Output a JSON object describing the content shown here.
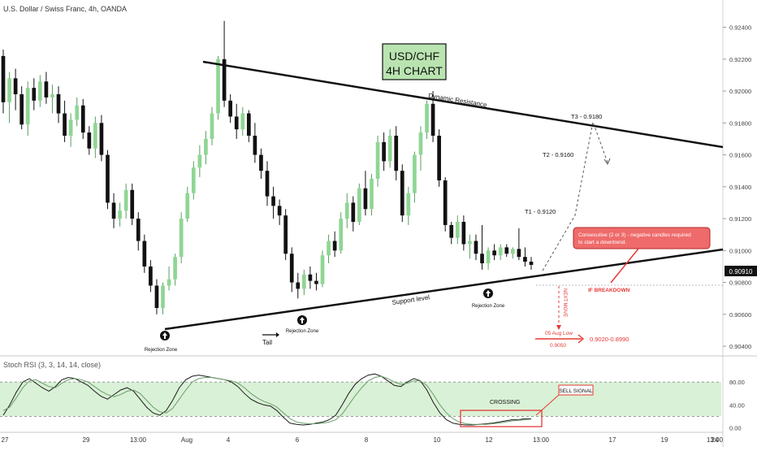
{
  "header": {
    "symbol_title": "U.S. Dollar / Swiss Franc, 4h, OANDA",
    "indicator_title": "Stoch RSI (3, 3, 14, 14, close)"
  },
  "annotations": {
    "chart_label_line1": "USD/CHF",
    "chart_label_line2": "4H CHART",
    "dynamic_resistance": "Dynamic Resistance",
    "support_level": "Support level",
    "rejection_zone": "Rejection Zone",
    "tail": "Tail",
    "t1": "T1 - 0.9120",
    "t2": "T2 - 0.9160",
    "t3": "T3 - 0.9180",
    "callout_line1": "Consecutive (2 or 3) - negative candles required",
    "callout_line2": "to start a downtrend.",
    "if_breakdown": "IF BREAKDOWN",
    "next_move": "NEXT MOVE",
    "aug_low_label": "05 Aug Low",
    "aug_low_value": "0.9050",
    "target_range": "0.9020-0.8990",
    "crossing": "CROSSING",
    "sell_signal": "SELL SIGNAL"
  },
  "colors": {
    "bull": "#8fd694",
    "bear": "#111111",
    "accent_red": "#e53935",
    "label_green_bg": "#b9e4b0",
    "callout_bg": "#ef6b6b",
    "stoch_band": "#b9e6b4",
    "price_line": "#888888"
  },
  "chart_data": [
    {
      "type": "candlestick",
      "title": "U.S. Dollar / Swiss Franc, 4h, OANDA",
      "x_ticks": [
        "27",
        "29",
        "13:00",
        "Aug",
        "4",
        "6",
        "8",
        "10",
        "12",
        "13:00",
        "17",
        "19",
        "13:00",
        "24"
      ],
      "y_ticks": [
        "0.92400",
        "0.92200",
        "0.92000",
        "0.91800",
        "0.91600",
        "0.91400",
        "0.91200",
        "0.91000",
        "0.90800",
        "0.90600",
        "0.90400"
      ],
      "ylim": [
        0.9038,
        0.9252
      ],
      "current_price_label": "0.90910",
      "current_price": 0.9091,
      "candles": [
        {
          "o": 0.9222,
          "h": 0.9226,
          "l": 0.9186,
          "c": 0.9193
        },
        {
          "o": 0.9193,
          "h": 0.9212,
          "l": 0.918,
          "c": 0.9208
        },
        {
          "o": 0.9208,
          "h": 0.9214,
          "l": 0.9188,
          "c": 0.9198
        },
        {
          "o": 0.9198,
          "h": 0.9203,
          "l": 0.9176,
          "c": 0.9179
        },
        {
          "o": 0.9179,
          "h": 0.9206,
          "l": 0.9172,
          "c": 0.9202
        },
        {
          "o": 0.9202,
          "h": 0.9208,
          "l": 0.9188,
          "c": 0.9194
        },
        {
          "o": 0.9194,
          "h": 0.921,
          "l": 0.919,
          "c": 0.9206
        },
        {
          "o": 0.9206,
          "h": 0.9212,
          "l": 0.9192,
          "c": 0.9196
        },
        {
          "o": 0.9196,
          "h": 0.9204,
          "l": 0.9186,
          "c": 0.9198
        },
        {
          "o": 0.9198,
          "h": 0.9203,
          "l": 0.918,
          "c": 0.9186
        },
        {
          "o": 0.9186,
          "h": 0.9194,
          "l": 0.9168,
          "c": 0.9172
        },
        {
          "o": 0.9172,
          "h": 0.9186,
          "l": 0.9165,
          "c": 0.9182
        },
        {
          "o": 0.9182,
          "h": 0.9196,
          "l": 0.9178,
          "c": 0.9191
        },
        {
          "o": 0.9191,
          "h": 0.9195,
          "l": 0.917,
          "c": 0.9174
        },
        {
          "o": 0.9174,
          "h": 0.9178,
          "l": 0.916,
          "c": 0.9164
        },
        {
          "o": 0.9164,
          "h": 0.9184,
          "l": 0.9158,
          "c": 0.918
        },
        {
          "o": 0.918,
          "h": 0.9185,
          "l": 0.9156,
          "c": 0.916
        },
        {
          "o": 0.916,
          "h": 0.9163,
          "l": 0.9126,
          "c": 0.913
        },
        {
          "o": 0.913,
          "h": 0.9136,
          "l": 0.9114,
          "c": 0.912
        },
        {
          "o": 0.912,
          "h": 0.913,
          "l": 0.9115,
          "c": 0.9125
        },
        {
          "o": 0.9125,
          "h": 0.9142,
          "l": 0.912,
          "c": 0.9138
        },
        {
          "o": 0.9138,
          "h": 0.9142,
          "l": 0.9116,
          "c": 0.912
        },
        {
          "o": 0.912,
          "h": 0.9124,
          "l": 0.91,
          "c": 0.9106
        },
        {
          "o": 0.9106,
          "h": 0.911,
          "l": 0.9086,
          "c": 0.909
        },
        {
          "o": 0.909,
          "h": 0.9094,
          "l": 0.9074,
          "c": 0.9078
        },
        {
          "o": 0.9078,
          "h": 0.9082,
          "l": 0.906,
          "c": 0.9064
        },
        {
          "o": 0.9064,
          "h": 0.908,
          "l": 0.906,
          "c": 0.9078
        },
        {
          "o": 0.9078,
          "h": 0.909,
          "l": 0.9075,
          "c": 0.9082
        },
        {
          "o": 0.9082,
          "h": 0.9098,
          "l": 0.9078,
          "c": 0.9096
        },
        {
          "o": 0.9096,
          "h": 0.9124,
          "l": 0.9092,
          "c": 0.912
        },
        {
          "o": 0.912,
          "h": 0.914,
          "l": 0.9118,
          "c": 0.9136
        },
        {
          "o": 0.9136,
          "h": 0.9156,
          "l": 0.9132,
          "c": 0.9152
        },
        {
          "o": 0.9152,
          "h": 0.9166,
          "l": 0.9146,
          "c": 0.916
        },
        {
          "o": 0.916,
          "h": 0.9175,
          "l": 0.9154,
          "c": 0.917
        },
        {
          "o": 0.917,
          "h": 0.919,
          "l": 0.9166,
          "c": 0.9186
        },
        {
          "o": 0.9186,
          "h": 0.9222,
          "l": 0.9182,
          "c": 0.922
        },
        {
          "o": 0.922,
          "h": 0.9244,
          "l": 0.919,
          "c": 0.9194
        },
        {
          "o": 0.9194,
          "h": 0.9198,
          "l": 0.918,
          "c": 0.9184
        },
        {
          "o": 0.9184,
          "h": 0.9192,
          "l": 0.917,
          "c": 0.9176
        },
        {
          "o": 0.9176,
          "h": 0.919,
          "l": 0.9172,
          "c": 0.9186
        },
        {
          "o": 0.9186,
          "h": 0.9188,
          "l": 0.9168,
          "c": 0.9172
        },
        {
          "o": 0.9172,
          "h": 0.918,
          "l": 0.9155,
          "c": 0.916
        },
        {
          "o": 0.916,
          "h": 0.9164,
          "l": 0.9145,
          "c": 0.915
        },
        {
          "o": 0.915,
          "h": 0.9156,
          "l": 0.9128,
          "c": 0.9134
        },
        {
          "o": 0.9134,
          "h": 0.914,
          "l": 0.912,
          "c": 0.9128
        },
        {
          "o": 0.9128,
          "h": 0.9132,
          "l": 0.9116,
          "c": 0.9122
        },
        {
          "o": 0.9122,
          "h": 0.9126,
          "l": 0.9094,
          "c": 0.9098
        },
        {
          "o": 0.9098,
          "h": 0.9102,
          "l": 0.9074,
          "c": 0.908
        },
        {
          "o": 0.908,
          "h": 0.9086,
          "l": 0.907,
          "c": 0.9076
        },
        {
          "o": 0.9076,
          "h": 0.9088,
          "l": 0.9072,
          "c": 0.9085
        },
        {
          "o": 0.9085,
          "h": 0.909,
          "l": 0.9076,
          "c": 0.9081
        },
        {
          "o": 0.9081,
          "h": 0.9086,
          "l": 0.9075,
          "c": 0.9079
        },
        {
          "o": 0.9079,
          "h": 0.91,
          "l": 0.9077,
          "c": 0.9097
        },
        {
          "o": 0.9097,
          "h": 0.911,
          "l": 0.9092,
          "c": 0.9106
        },
        {
          "o": 0.9106,
          "h": 0.9112,
          "l": 0.9096,
          "c": 0.91
        },
        {
          "o": 0.91,
          "h": 0.9124,
          "l": 0.9098,
          "c": 0.912
        },
        {
          "o": 0.912,
          "h": 0.9136,
          "l": 0.9114,
          "c": 0.913
        },
        {
          "o": 0.913,
          "h": 0.9134,
          "l": 0.9112,
          "c": 0.9118
        },
        {
          "o": 0.9118,
          "h": 0.9142,
          "l": 0.9116,
          "c": 0.9139
        },
        {
          "o": 0.9139,
          "h": 0.915,
          "l": 0.9122,
          "c": 0.9126
        },
        {
          "o": 0.9126,
          "h": 0.9148,
          "l": 0.9122,
          "c": 0.9145
        },
        {
          "o": 0.9145,
          "h": 0.9172,
          "l": 0.914,
          "c": 0.9168
        },
        {
          "o": 0.9168,
          "h": 0.9174,
          "l": 0.915,
          "c": 0.9156
        },
        {
          "o": 0.9156,
          "h": 0.9176,
          "l": 0.9152,
          "c": 0.9172
        },
        {
          "o": 0.9172,
          "h": 0.9178,
          "l": 0.9144,
          "c": 0.915
        },
        {
          "o": 0.915,
          "h": 0.9154,
          "l": 0.9118,
          "c": 0.9122
        },
        {
          "o": 0.9122,
          "h": 0.914,
          "l": 0.9116,
          "c": 0.9136
        },
        {
          "o": 0.9136,
          "h": 0.9162,
          "l": 0.913,
          "c": 0.916
        },
        {
          "o": 0.916,
          "h": 0.9178,
          "l": 0.915,
          "c": 0.9174
        },
        {
          "o": 0.9174,
          "h": 0.9194,
          "l": 0.917,
          "c": 0.9192
        },
        {
          "o": 0.9192,
          "h": 0.92,
          "l": 0.9168,
          "c": 0.9172
        },
        {
          "o": 0.9172,
          "h": 0.9176,
          "l": 0.914,
          "c": 0.9144
        },
        {
          "o": 0.9144,
          "h": 0.9146,
          "l": 0.9112,
          "c": 0.9116
        },
        {
          "o": 0.9116,
          "h": 0.9118,
          "l": 0.9104,
          "c": 0.9108
        },
        {
          "o": 0.9108,
          "h": 0.9122,
          "l": 0.9104,
          "c": 0.9118
        },
        {
          "o": 0.9118,
          "h": 0.9122,
          "l": 0.91,
          "c": 0.9104
        },
        {
          "o": 0.9104,
          "h": 0.911,
          "l": 0.9095,
          "c": 0.9106
        },
        {
          "o": 0.9106,
          "h": 0.911,
          "l": 0.9094,
          "c": 0.9098
        },
        {
          "o": 0.9098,
          "h": 0.9116,
          "l": 0.9088,
          "c": 0.9092
        },
        {
          "o": 0.9092,
          "h": 0.9102,
          "l": 0.9088,
          "c": 0.91
        },
        {
          "o": 0.91,
          "h": 0.9104,
          "l": 0.9094,
          "c": 0.9097
        },
        {
          "o": 0.9097,
          "h": 0.9104,
          "l": 0.9094,
          "c": 0.9102
        },
        {
          "o": 0.9102,
          "h": 0.9104,
          "l": 0.9096,
          "c": 0.9098
        },
        {
          "o": 0.9098,
          "h": 0.9102,
          "l": 0.9095,
          "c": 0.9101
        },
        {
          "o": 0.9101,
          "h": 0.9114,
          "l": 0.9094,
          "c": 0.9096
        },
        {
          "o": 0.9096,
          "h": 0.9102,
          "l": 0.909,
          "c": 0.9093
        },
        {
          "o": 0.9093,
          "h": 0.9096,
          "l": 0.9088,
          "c": 0.9091
        }
      ]
    },
    {
      "type": "line",
      "title": "Stoch RSI (3, 3, 14, 14, close)",
      "y_ticks": [
        "80.00",
        "40.00",
        "0.00"
      ],
      "ylim": [
        -5,
        100
      ],
      "band": [
        20,
        80
      ],
      "series": [
        {
          "values": [
            22,
            40,
            62,
            80,
            86,
            78,
            70,
            64,
            72,
            84,
            88,
            86,
            80,
            74,
            64,
            55,
            50,
            58,
            66,
            70,
            64,
            50,
            36,
            26,
            22,
            30,
            48,
            70,
            84,
            90,
            92,
            90,
            88,
            86,
            84,
            80,
            72,
            60,
            50,
            44,
            40,
            38,
            30,
            18,
            8,
            6,
            5,
            6,
            8,
            10,
            14,
            22,
            40,
            60,
            76,
            86,
            92,
            94,
            90,
            82,
            74,
            72,
            80,
            86,
            82,
            66,
            44,
            26,
            14,
            8,
            6,
            5,
            5,
            6,
            7,
            8,
            10,
            12,
            14,
            14,
            16,
            16
          ]
        },
        {
          "values": [
            30,
            36,
            52,
            70,
            82,
            84,
            78,
            72,
            70,
            78,
            84,
            86,
            84,
            80,
            72,
            64,
            58,
            54,
            58,
            64,
            66,
            60,
            48,
            36,
            28,
            26,
            34,
            50,
            66,
            80,
            86,
            88,
            88,
            86,
            84,
            82,
            78,
            70,
            60,
            52,
            46,
            42,
            36,
            26,
            16,
            10,
            8,
            7,
            7,
            8,
            10,
            14,
            24,
            40,
            56,
            70,
            82,
            88,
            90,
            86,
            80,
            76,
            78,
            82,
            82,
            74,
            58,
            40,
            26,
            16,
            10,
            7,
            6,
            6,
            6,
            7,
            8,
            10,
            12,
            13,
            14,
            15
          ]
        }
      ]
    }
  ]
}
